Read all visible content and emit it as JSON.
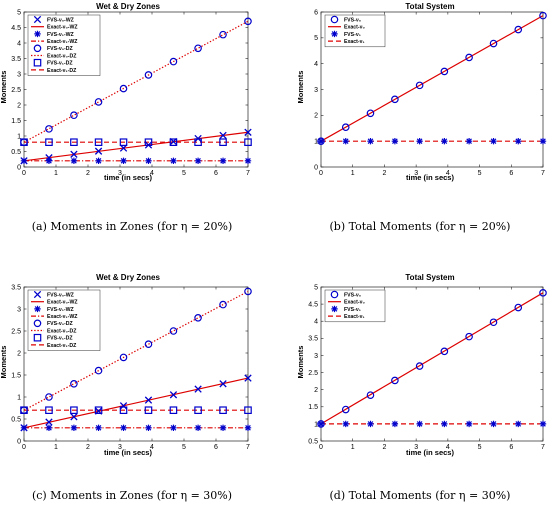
{
  "chart_data": [
    {
      "type": "line",
      "title": "Wet & Dry Zones",
      "xlabel": "time (in secs)",
      "ylabel": "Moments",
      "caption": "(a) Moments in Zones (for η = 20%)",
      "xlim": [
        0,
        7
      ],
      "ylim": [
        0,
        5
      ],
      "xticks": [
        0,
        1,
        2,
        3,
        4,
        5,
        6,
        7
      ],
      "yticks": [
        0,
        0.5,
        1,
        1.5,
        2,
        2.5,
        3,
        3.5,
        4,
        4.5,
        5
      ],
      "legend_position": "top-left",
      "grid": false,
      "series": [
        {
          "name": "FVS-ν₀-WZ",
          "style": "marker",
          "marker": "x",
          "color": "#0000cc",
          "x": [
            0,
            0.78,
            1.56,
            2.33,
            3.11,
            3.89,
            4.67,
            5.44,
            6.22,
            7.0
          ],
          "y": [
            0.2,
            0.3,
            0.41,
            0.51,
            0.61,
            0.71,
            0.82,
            0.92,
            1.02,
            1.12
          ]
        },
        {
          "name": "Exact-ν₀-WZ",
          "style": "solid",
          "color": "#dd0000",
          "x": [
            0,
            7
          ],
          "y": [
            0.2,
            1.12
          ]
        },
        {
          "name": "FVS-ν₁-WZ",
          "style": "marker",
          "marker": "asterisk",
          "color": "#0000cc",
          "x": [
            0,
            0.78,
            1.56,
            2.33,
            3.11,
            3.89,
            4.67,
            5.44,
            6.22,
            7.0
          ],
          "y": [
            0.2,
            0.2,
            0.2,
            0.2,
            0.2,
            0.2,
            0.2,
            0.2,
            0.2,
            0.2
          ]
        },
        {
          "name": "Exact-ν₁-WZ",
          "style": "dashdot",
          "color": "#dd0000",
          "x": [
            0,
            7
          ],
          "y": [
            0.2,
            0.2
          ]
        },
        {
          "name": "FVS-ν₀-DZ",
          "style": "marker",
          "marker": "circle",
          "color": "#0000cc",
          "x": [
            0,
            0.78,
            1.56,
            2.33,
            3.11,
            3.89,
            4.67,
            5.44,
            6.22,
            7.0
          ],
          "y": [
            0.8,
            1.23,
            1.67,
            2.1,
            2.53,
            2.97,
            3.4,
            3.83,
            4.27,
            4.7
          ]
        },
        {
          "name": "Exact-ν₀-DZ",
          "style": "dotted",
          "color": "#dd0000",
          "x": [
            0,
            7
          ],
          "y": [
            0.8,
            4.7
          ]
        },
        {
          "name": "FVS-ν₁-DZ",
          "style": "marker",
          "marker": "square",
          "color": "#0000cc",
          "x": [
            0,
            0.78,
            1.56,
            2.33,
            3.11,
            3.89,
            4.67,
            5.44,
            6.22,
            7.0
          ],
          "y": [
            0.8,
            0.8,
            0.8,
            0.8,
            0.8,
            0.8,
            0.8,
            0.8,
            0.8,
            0.8
          ]
        },
        {
          "name": "Exact-ν₁-DZ",
          "style": "dashed",
          "color": "#dd0000",
          "x": [
            0,
            7
          ],
          "y": [
            0.8,
            0.8
          ]
        }
      ]
    },
    {
      "type": "line",
      "title": "Total System",
      "xlabel": "time (in secs)",
      "ylabel": "Moments",
      "caption": "(b) Total Moments (for η = 20%)",
      "xlim": [
        0,
        7
      ],
      "ylim": [
        0,
        6
      ],
      "xticks": [
        0,
        1,
        2,
        3,
        4,
        5,
        6,
        7
      ],
      "yticks": [
        0,
        1,
        2,
        3,
        4,
        5,
        6
      ],
      "legend_position": "top-left",
      "grid": false,
      "series": [
        {
          "name": "FVS-ν₀",
          "style": "marker",
          "marker": "circle",
          "color": "#0000cc",
          "x": [
            0,
            0.78,
            1.56,
            2.33,
            3.11,
            3.89,
            4.67,
            5.44,
            6.22,
            7.0
          ],
          "y": [
            1.0,
            1.54,
            2.08,
            2.62,
            3.16,
            3.7,
            4.24,
            4.78,
            5.32,
            5.86
          ]
        },
        {
          "name": "Exact-ν₀",
          "style": "solid",
          "color": "#dd0000",
          "x": [
            0,
            7
          ],
          "y": [
            1.0,
            5.86
          ]
        },
        {
          "name": "FVS-ν₁",
          "style": "marker",
          "marker": "asterisk",
          "color": "#0000cc",
          "x": [
            0,
            0.78,
            1.56,
            2.33,
            3.11,
            3.89,
            4.67,
            5.44,
            6.22,
            7.0
          ],
          "y": [
            1.0,
            1.0,
            1.0,
            1.0,
            1.0,
            1.0,
            1.0,
            1.0,
            1.0,
            1.0
          ]
        },
        {
          "name": "Exact-ν₁",
          "style": "dashed",
          "color": "#dd0000",
          "x": [
            0,
            7
          ],
          "y": [
            1.0,
            1.0
          ]
        }
      ]
    },
    {
      "type": "line",
      "title": "Wet & Dry Zones",
      "xlabel": "time (in secs)",
      "ylabel": "Moments",
      "caption": "(c) Moments in Zones (for η = 30%)",
      "xlim": [
        0,
        7
      ],
      "ylim": [
        0,
        3.5
      ],
      "xticks": [
        0,
        1,
        2,
        3,
        4,
        5,
        6,
        7
      ],
      "yticks": [
        0,
        0.5,
        1,
        1.5,
        2,
        2.5,
        3,
        3.5
      ],
      "legend_position": "top-left",
      "grid": false,
      "series": [
        {
          "name": "FVS-ν₀-WZ",
          "style": "marker",
          "marker": "x",
          "color": "#0000cc",
          "x": [
            0,
            0.78,
            1.56,
            2.33,
            3.11,
            3.89,
            4.67,
            5.44,
            6.22,
            7.0
          ],
          "y": [
            0.3,
            0.43,
            0.55,
            0.68,
            0.8,
            0.93,
            1.05,
            1.18,
            1.3,
            1.43
          ]
        },
        {
          "name": "Exact-ν₀-WZ",
          "style": "solid",
          "color": "#dd0000",
          "x": [
            0,
            7
          ],
          "y": [
            0.3,
            1.43
          ]
        },
        {
          "name": "FVS-ν₁-WZ",
          "style": "marker",
          "marker": "asterisk",
          "color": "#0000cc",
          "x": [
            0,
            0.78,
            1.56,
            2.33,
            3.11,
            3.89,
            4.67,
            5.44,
            6.22,
            7.0
          ],
          "y": [
            0.3,
            0.3,
            0.3,
            0.3,
            0.3,
            0.3,
            0.3,
            0.3,
            0.3,
            0.3
          ]
        },
        {
          "name": "Exact-ν₁-WZ",
          "style": "dashdot",
          "color": "#dd0000",
          "x": [
            0,
            7
          ],
          "y": [
            0.3,
            0.3
          ]
        },
        {
          "name": "FVS-ν₀-DZ",
          "style": "marker",
          "marker": "circle",
          "color": "#0000cc",
          "x": [
            0,
            0.78,
            1.56,
            2.33,
            3.11,
            3.89,
            4.67,
            5.44,
            6.22,
            7.0
          ],
          "y": [
            0.7,
            1.0,
            1.3,
            1.6,
            1.9,
            2.2,
            2.5,
            2.8,
            3.1,
            3.4
          ]
        },
        {
          "name": "Exact-ν₀-DZ",
          "style": "dotted",
          "color": "#dd0000",
          "x": [
            0,
            7
          ],
          "y": [
            0.7,
            3.4
          ]
        },
        {
          "name": "FVS-ν₁-DZ",
          "style": "marker",
          "marker": "square",
          "color": "#0000cc",
          "x": [
            0,
            0.78,
            1.56,
            2.33,
            3.11,
            3.89,
            4.67,
            5.44,
            6.22,
            7.0
          ],
          "y": [
            0.7,
            0.7,
            0.7,
            0.7,
            0.7,
            0.7,
            0.7,
            0.7,
            0.7,
            0.7
          ]
        },
        {
          "name": "Exact-ν₁-DZ",
          "style": "dashed",
          "color": "#dd0000",
          "x": [
            0,
            7
          ],
          "y": [
            0.7,
            0.7
          ]
        }
      ]
    },
    {
      "type": "line",
      "title": "Total System",
      "xlabel": "time (in secs)",
      "ylabel": "Moments",
      "caption": "(d) Total Moments (for η = 30%)",
      "xlim": [
        0,
        7
      ],
      "ylim": [
        0.5,
        5
      ],
      "xticks": [
        0,
        1,
        2,
        3,
        4,
        5,
        6,
        7
      ],
      "yticks": [
        0.5,
        1,
        1.5,
        2,
        2.5,
        3,
        3.5,
        4,
        4.5,
        5
      ],
      "legend_position": "top-left",
      "grid": false,
      "series": [
        {
          "name": "FVS-ν₀",
          "style": "marker",
          "marker": "circle",
          "color": "#0000cc",
          "x": [
            0,
            0.78,
            1.56,
            2.33,
            3.11,
            3.89,
            4.67,
            5.44,
            6.22,
            7.0
          ],
          "y": [
            1.0,
            1.42,
            1.84,
            2.27,
            2.69,
            3.12,
            3.55,
            3.97,
            4.4,
            4.83
          ]
        },
        {
          "name": "Exact-ν₀",
          "style": "solid",
          "color": "#dd0000",
          "x": [
            0,
            7
          ],
          "y": [
            1.0,
            4.83
          ]
        },
        {
          "name": "FVS-ν₁",
          "style": "marker",
          "marker": "asterisk",
          "color": "#0000cc",
          "x": [
            0,
            0.78,
            1.56,
            2.33,
            3.11,
            3.89,
            4.67,
            5.44,
            6.22,
            7.0
          ],
          "y": [
            1.0,
            1.0,
            1.0,
            1.0,
            1.0,
            1.0,
            1.0,
            1.0,
            1.0,
            1.0
          ]
        },
        {
          "name": "Exact-ν₁",
          "style": "dashed",
          "color": "#dd0000",
          "x": [
            0,
            7
          ],
          "y": [
            1.0,
            1.0
          ]
        }
      ]
    }
  ]
}
